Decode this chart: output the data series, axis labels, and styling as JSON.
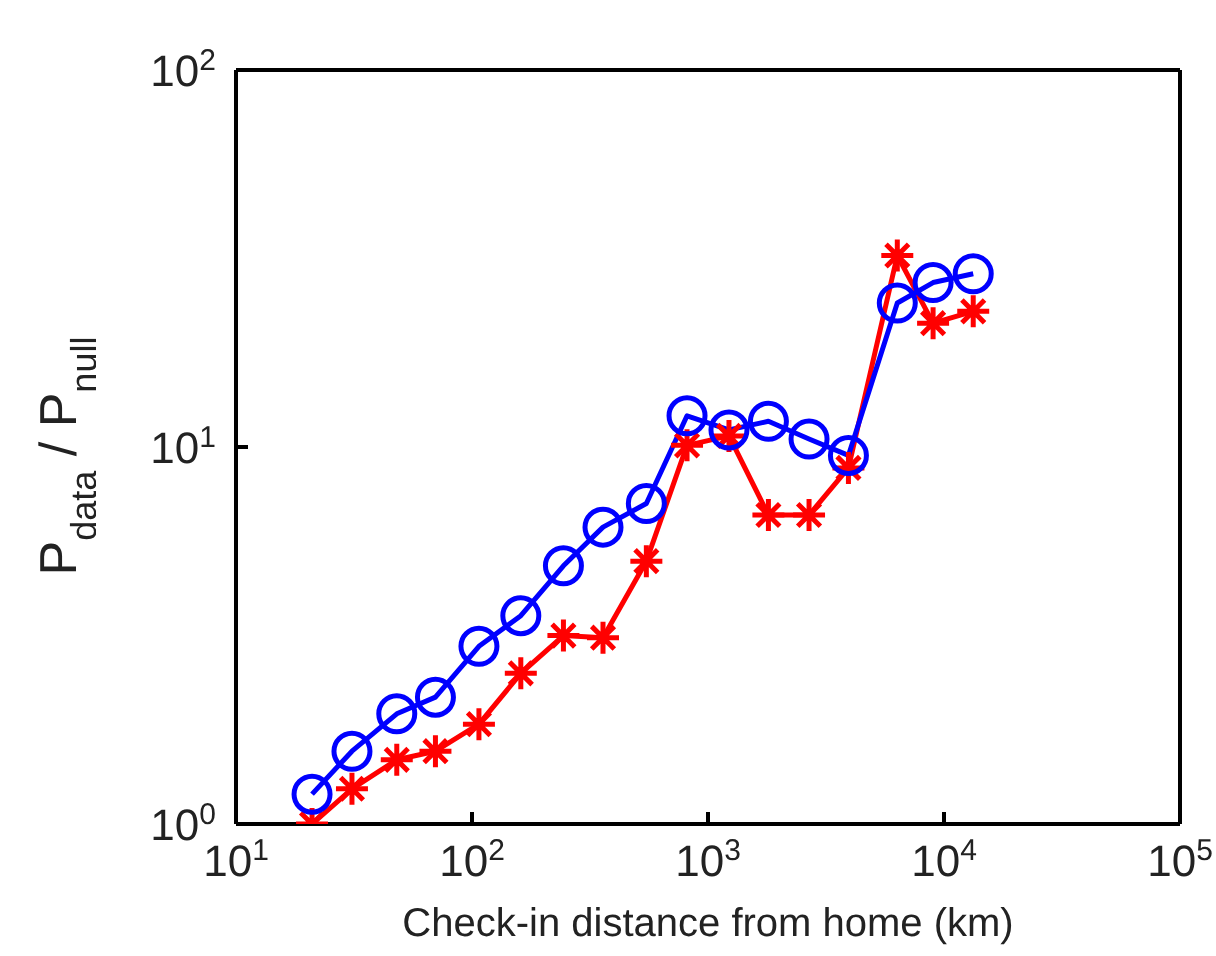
{
  "chart_data": {
    "type": "line",
    "xlabel": "Check-in distance from home (km)",
    "ylabel": "P$_{data}$ / P$_{null}$",
    "log": "xy",
    "grid": false,
    "legend": false,
    "x": [
      21,
      31,
      48,
      70,
      107,
      161,
      244,
      359,
      548,
      815,
      1227,
      1803,
      2680,
      3936,
      6340,
      8990,
      13300
    ],
    "xlim": [
      10,
      100000
    ],
    "xticks": [
      {
        "value": 10,
        "label": "10$^{1}$"
      },
      {
        "value": 100,
        "label": "10$^{2}$"
      },
      {
        "value": 1000,
        "label": "10$^{3}$"
      },
      {
        "value": 10000,
        "label": "10$^{4}$"
      },
      {
        "value": 100000,
        "label": "10$^{5}$"
      }
    ],
    "ylim": [
      1,
      100
    ],
    "yticks": [
      {
        "value": 1,
        "label": "10$^{0}$"
      },
      {
        "value": 10,
        "label": "10$^{1}$"
      },
      {
        "value": 100,
        "label": "10$^{2}$"
      }
    ],
    "series": [
      {
        "color": "#ff0000",
        "marker": "cross",
        "values": [
          1,
          1.24,
          1.48,
          1.56,
          1.84,
          2.51,
          3.16,
          3.12,
          4.98,
          10.1,
          10.7,
          6.6,
          6.6,
          8.8,
          32.2,
          21.3,
          22.9
        ]
      },
      {
        "color": "#0000ff",
        "marker": "circle",
        "values": [
          1.2,
          1.56,
          1.96,
          2.17,
          2.96,
          3.57,
          4.84,
          6.13,
          7.08,
          12.1,
          11.1,
          11.7,
          10.5,
          9.5,
          24.1,
          27.3,
          28.8
        ]
      }
    ]
  }
}
